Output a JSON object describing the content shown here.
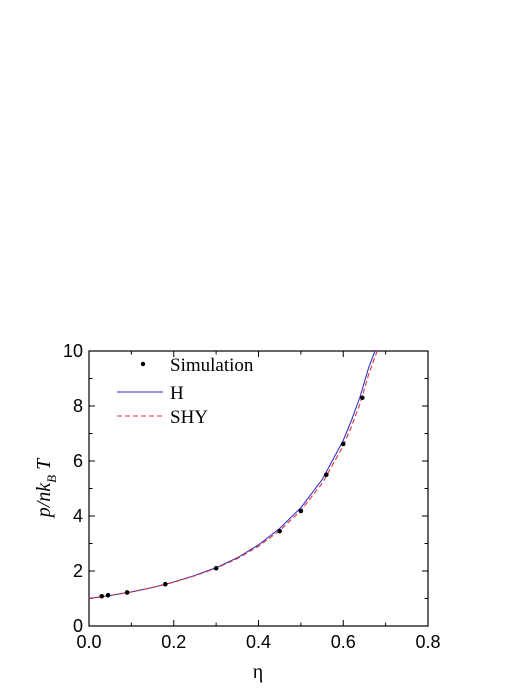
{
  "chart_data": {
    "type": "line",
    "title": "",
    "xlabel": "η",
    "ylabel": {
      "main": "p/nk",
      "sub": "B",
      "tail": "T"
    },
    "xlim": [
      0.0,
      0.8
    ],
    "ylim": [
      0,
      10
    ],
    "x_ticks": [
      0.0,
      0.2,
      0.4,
      0.6,
      0.8
    ],
    "x_tick_labels": [
      "0.0",
      "0.2",
      "0.4",
      "0.6",
      "0.8"
    ],
    "y_ticks": [
      0,
      2,
      4,
      6,
      8,
      10
    ],
    "y_tick_labels": [
      "0",
      "2",
      "4",
      "6",
      "8",
      "10"
    ],
    "grid": false,
    "legend_position": "top-left",
    "legend": [
      {
        "label": "Simulation",
        "style": "dot",
        "color": "#000000"
      },
      {
        "label": "H",
        "style": "solid",
        "color": "#3333cc"
      },
      {
        "label": "SHY",
        "style": "dashed",
        "color": "#e0303a"
      }
    ],
    "series": [
      {
        "name": "Simulation",
        "kind": "scatter",
        "color": "#000000",
        "points": [
          {
            "x": 0.03,
            "y": 1.08
          },
          {
            "x": 0.045,
            "y": 1.12
          },
          {
            "x": 0.09,
            "y": 1.22
          },
          {
            "x": 0.18,
            "y": 1.52
          },
          {
            "x": 0.3,
            "y": 2.1
          },
          {
            "x": 0.45,
            "y": 3.45
          },
          {
            "x": 0.5,
            "y": 4.18
          },
          {
            "x": 0.56,
            "y": 5.5
          },
          {
            "x": 0.6,
            "y": 6.62
          },
          {
            "x": 0.645,
            "y": 8.3
          }
        ]
      },
      {
        "name": "H",
        "kind": "line",
        "color": "#3333cc",
        "dash": "",
        "points": [
          {
            "x": 0.0,
            "y": 1.0
          },
          {
            "x": 0.05,
            "y": 1.11
          },
          {
            "x": 0.1,
            "y": 1.24
          },
          {
            "x": 0.15,
            "y": 1.4
          },
          {
            "x": 0.2,
            "y": 1.6
          },
          {
            "x": 0.25,
            "y": 1.84
          },
          {
            "x": 0.3,
            "y": 2.12
          },
          {
            "x": 0.35,
            "y": 2.48
          },
          {
            "x": 0.4,
            "y": 2.95
          },
          {
            "x": 0.45,
            "y": 3.55
          },
          {
            "x": 0.5,
            "y": 4.3
          },
          {
            "x": 0.55,
            "y": 5.32
          },
          {
            "x": 0.6,
            "y": 6.75
          },
          {
            "x": 0.62,
            "y": 7.5
          },
          {
            "x": 0.64,
            "y": 8.35
          },
          {
            "x": 0.66,
            "y": 9.4
          },
          {
            "x": 0.675,
            "y": 10.0
          }
        ]
      },
      {
        "name": "SHY",
        "kind": "line",
        "color": "#e0303a",
        "dash": "5,3",
        "points": [
          {
            "x": 0.0,
            "y": 1.0
          },
          {
            "x": 0.05,
            "y": 1.11
          },
          {
            "x": 0.1,
            "y": 1.24
          },
          {
            "x": 0.15,
            "y": 1.4
          },
          {
            "x": 0.2,
            "y": 1.59
          },
          {
            "x": 0.25,
            "y": 1.83
          },
          {
            "x": 0.3,
            "y": 2.1
          },
          {
            "x": 0.35,
            "y": 2.45
          },
          {
            "x": 0.4,
            "y": 2.9
          },
          {
            "x": 0.45,
            "y": 3.47
          },
          {
            "x": 0.5,
            "y": 4.2
          },
          {
            "x": 0.55,
            "y": 5.18
          },
          {
            "x": 0.6,
            "y": 6.55
          },
          {
            "x": 0.62,
            "y": 7.28
          },
          {
            "x": 0.64,
            "y": 8.1
          },
          {
            "x": 0.66,
            "y": 9.15
          },
          {
            "x": 0.68,
            "y": 10.0
          }
        ]
      }
    ]
  }
}
